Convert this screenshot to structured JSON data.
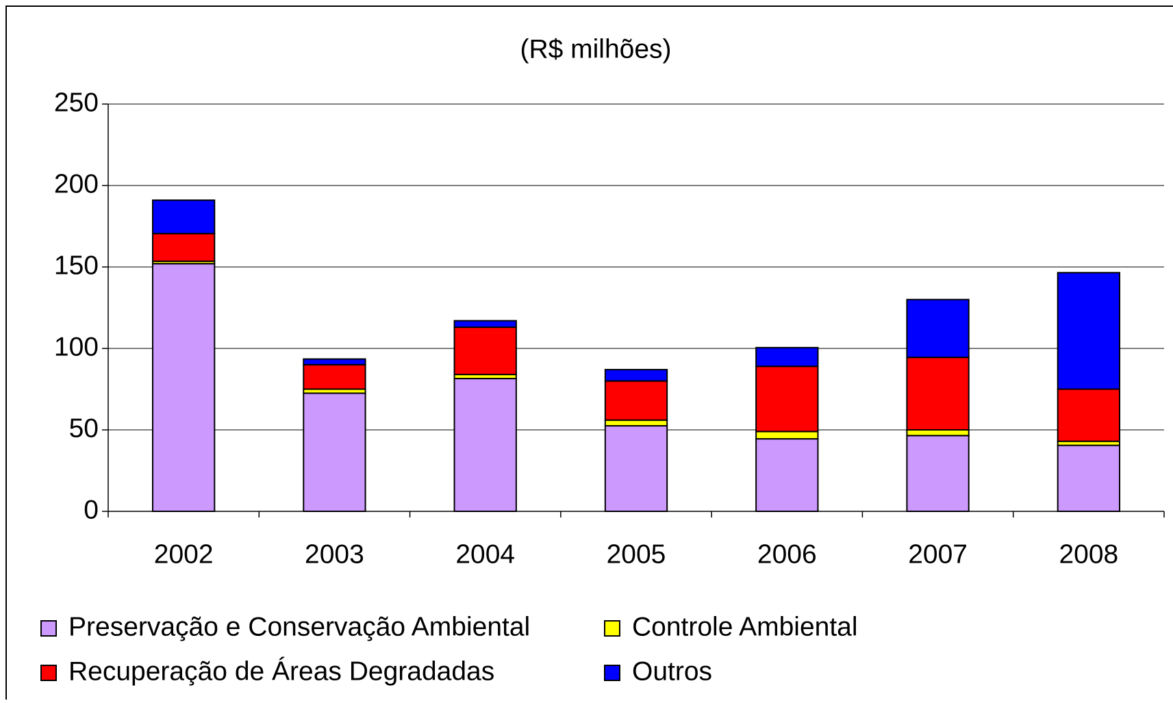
{
  "chart_data": {
    "type": "stacked_bar",
    "title": "(R$ milhões)",
    "categories": [
      "2002",
      "2003",
      "2004",
      "2005",
      "2006",
      "2007",
      "2008"
    ],
    "series": [
      {
        "name": "Preservação e Conservação Ambiental",
        "color": "#cc99ff",
        "values": [
          152,
          72.5,
          81.5,
          52.5,
          44.5,
          46.5,
          40.5
        ]
      },
      {
        "name": "Controle Ambiental",
        "color": "#ffff00",
        "values": [
          1.5,
          2.5,
          2.5,
          3.5,
          4.5,
          3.5,
          2.5
        ]
      },
      {
        "name": "Recuperação de Áreas Degradadas",
        "color": "#ff0000",
        "values": [
          17,
          15,
          29,
          24,
          40,
          44.5,
          32
        ]
      },
      {
        "name": "Outros",
        "color": "#0000ff",
        "values": [
          20.5,
          3.5,
          4,
          7,
          11.5,
          35.5,
          71.5
        ]
      }
    ],
    "ylim": [
      0,
      250
    ],
    "yticks": [
      0,
      50,
      100,
      150,
      200,
      250
    ],
    "grid": true,
    "legend": "bottom"
  }
}
